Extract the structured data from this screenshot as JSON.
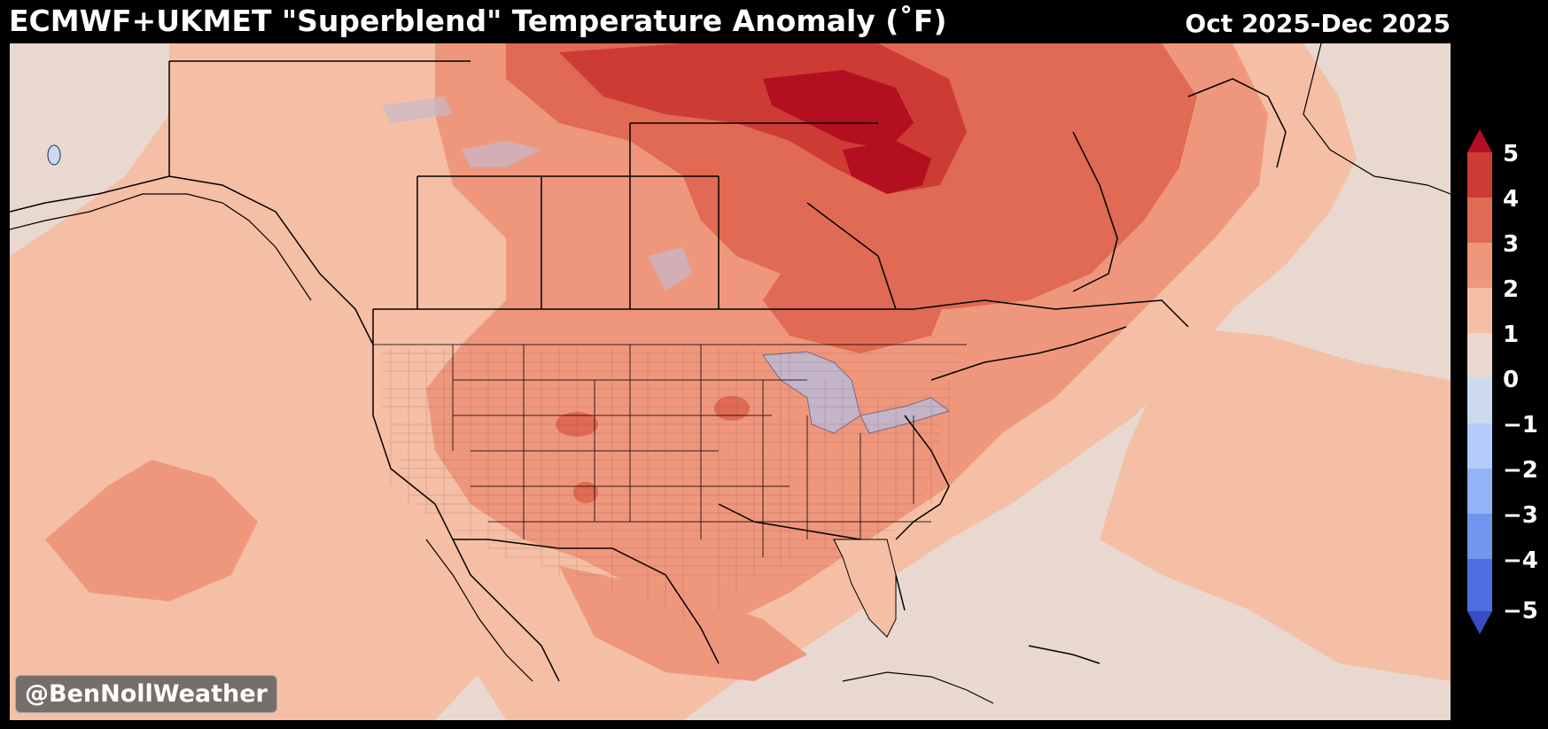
{
  "header": {
    "title": "ECMWF+UKMET \"Superblend\" Temperature Anomaly (˚F)",
    "date_range": "Oct 2025-Dec 2025"
  },
  "credit": "@BenNollWeather",
  "colorbar": {
    "labels": [
      "5",
      "4",
      "3",
      "2",
      "1",
      "0",
      "−1",
      "−2",
      "−3",
      "−4",
      "−5"
    ],
    "colors": [
      "#b40f20",
      "#cd3b35",
      "#e06a53",
      "#ef977d",
      "#f5bfa5",
      "#e8d8d0",
      "#cdd9ee",
      "#b3ccfb",
      "#93b3f8",
      "#7096ee",
      "#4f6fe0",
      "#3a4cc0"
    ]
  },
  "map": {
    "palette": {
      "ocean_base": "#e8d8d0",
      "anom_1_2": "#f5bfa5",
      "anom_2_3": "#ef977d",
      "anom_3_4": "#e06a53",
      "anom_4_5": "#cd3b35",
      "anom_5_plus": "#b40f20",
      "lakes": "#c4b4c8",
      "borders": "#000000"
    }
  }
}
